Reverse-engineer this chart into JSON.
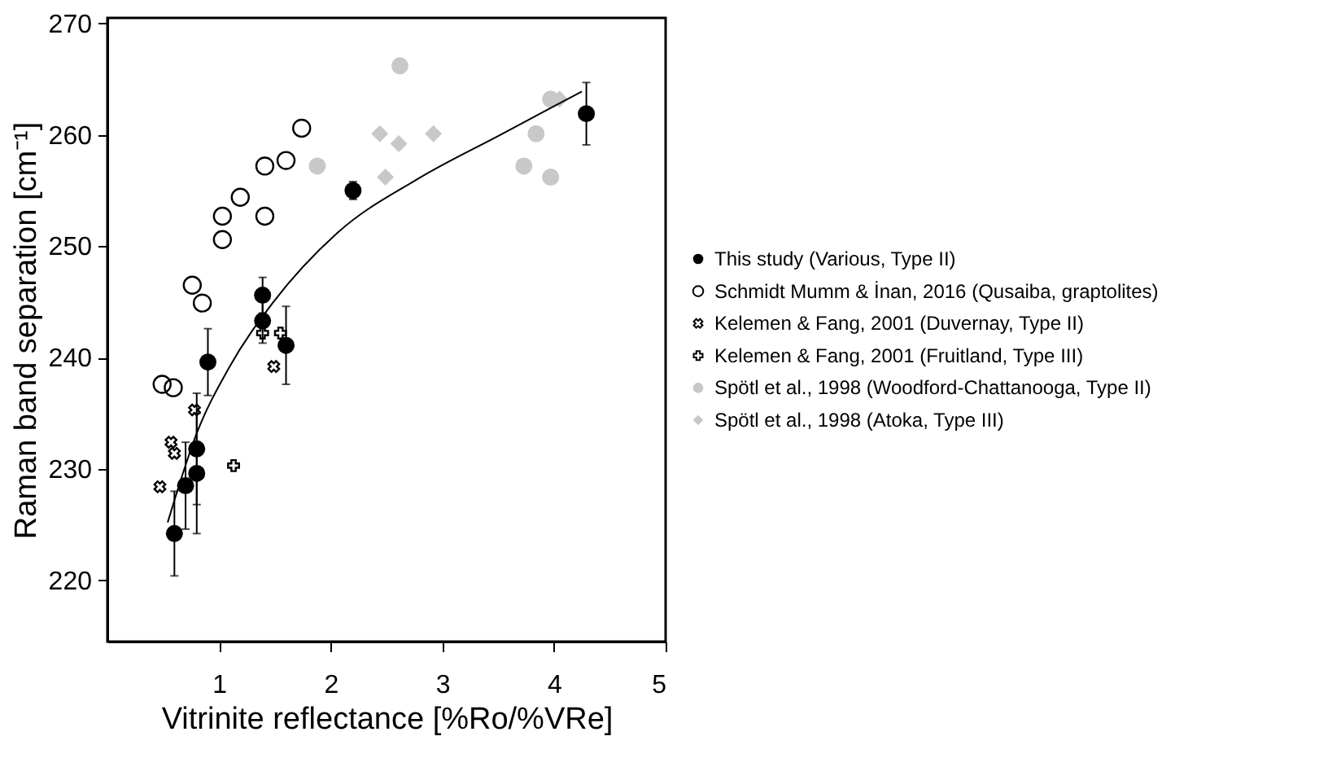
{
  "chart_data": {
    "type": "scatter",
    "xlabel": "Vitrinite reflectance [%Ro/%VRe]",
    "ylabel": "Raman band separation [cm⁻¹]",
    "xlim": [
      0,
      5
    ],
    "xticks": [
      {
        "value": 1,
        "label": "1"
      },
      {
        "value": 2,
        "label": "2"
      },
      {
        "value": 3,
        "label": "3"
      },
      {
        "value": 4,
        "label": "4"
      },
      {
        "value": 5,
        "label": "5"
      }
    ],
    "ylim": [
      214.5,
      270.5
    ],
    "yticks": [
      220,
      230,
      240,
      250,
      260,
      270
    ],
    "grid": false,
    "legend": "right",
    "series": [
      {
        "name": "This study (Various, Type II)",
        "color": "#000000",
        "marker": "circle",
        "x": [
          0.6,
          0.7,
          0.8,
          0.8,
          0.9,
          1.39,
          1.39,
          1.6,
          2.2,
          4.29
        ],
        "values": [
          224.2,
          228.5,
          229.6,
          231.8,
          239.6,
          243.3,
          245.6,
          241.1,
          255.0,
          261.9
        ],
        "errors": [
          3.8,
          3.9,
          5.4,
          5,
          3,
          2,
          1.6,
          3.5,
          0.8,
          2.8
        ]
      },
      {
        "name": "Schmidt Mumm & İnan, 2016 (Qusaiba, graptolites)",
        "color": "#000000",
        "marker": "open circle",
        "x": [
          0.49,
          0.59,
          0.76,
          0.85,
          1.03,
          1.03,
          1.19,
          1.41,
          1.41,
          1.6,
          1.74
        ],
        "values": [
          237.6,
          237.3,
          246.5,
          244.9,
          250.6,
          252.7,
          254.4,
          252.7,
          257.2,
          257.7,
          260.6
        ]
      },
      {
        "name": "Kelemen & Fang, 2001 (Duvernay, Type II)",
        "color": "#000000",
        "marker": "cross",
        "x": [
          0.47,
          0.57,
          0.6,
          0.78,
          1.49
        ],
        "values": [
          228.4,
          232.4,
          231.4,
          235.3,
          239.2
        ]
      },
      {
        "name": "Kelemen & Fang, 2001 (Fruitland, Type III)",
        "color": "#000000",
        "marker": "plus",
        "x": [
          1.13,
          1.39,
          1.55
        ],
        "values": [
          230.3,
          242.2,
          242.2
        ]
      },
      {
        "name": "Spötl et al., 1998 (Woodford-Chattanooga, Type II)",
        "color": "#c8c8c8",
        "marker": "circle",
        "x": [
          1.88,
          2.62,
          3.73,
          3.84,
          3.97,
          3.97
        ],
        "values": [
          257.2,
          266.2,
          257.2,
          260.1,
          256.2,
          263.2
        ]
      },
      {
        "name": "Spötl et al., 1998 (Atoka, Type III)",
        "color": "#c8c8c8",
        "marker": "diamond",
        "x": [
          2.44,
          2.49,
          2.61,
          2.92,
          4.05
        ],
        "values": [
          260.1,
          256.2,
          259.2,
          260.1,
          263.2
        ]
      },
      {
        "type": "line",
        "color": "#000000",
        "marker": "none",
        "x": [
          0.54,
          0.8,
          1.09,
          1.48,
          2.06,
          2.79,
          3.52,
          4.25
        ],
        "values": [
          225.2,
          233.2,
          239.1,
          244.9,
          251.2,
          256.1,
          260.0,
          263.9
        ]
      }
    ]
  }
}
